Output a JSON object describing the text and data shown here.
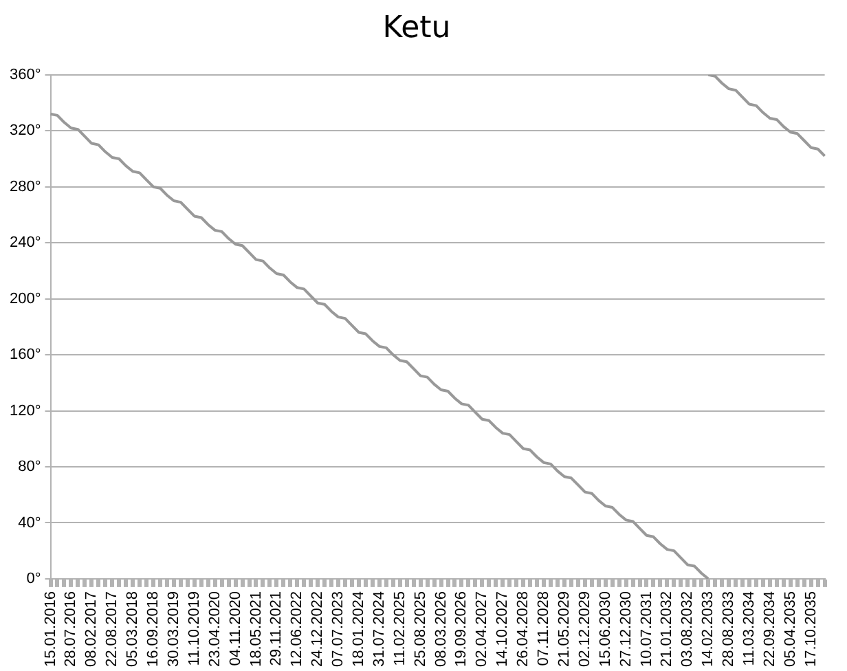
{
  "chart_data": {
    "type": "line",
    "title": "Ketu",
    "categories": [
      "15.01.2016",
      null,
      null,
      "28.07.2016",
      null,
      null,
      "08.02.2017",
      null,
      null,
      "22.08.2017",
      null,
      null,
      "05.03.2018",
      null,
      null,
      "16.09.2018",
      null,
      null,
      "30.03.2019",
      null,
      null,
      "11.10.2019",
      null,
      null,
      "23.04.2020",
      null,
      null,
      "04.11.2020",
      null,
      null,
      "18.05.2021",
      null,
      null,
      "29.11.2021",
      null,
      null,
      "12.06.2022",
      null,
      null,
      "24.12.2022",
      null,
      null,
      "07.07.2023",
      null,
      null,
      "18.01.2024",
      null,
      null,
      "31.07.2024",
      null,
      null,
      "11.02.2025",
      null,
      null,
      "25.08.2025",
      null,
      null,
      "08.03.2026",
      null,
      null,
      "19.09.2026",
      null,
      null,
      "02.04.2027",
      null,
      null,
      "14.10.2027",
      null,
      null,
      "26.04.2028",
      null,
      null,
      "07.11.2028",
      null,
      null,
      "21.05.2029",
      null,
      null,
      "02.12.2029",
      null,
      null,
      "15.06.2030",
      null,
      null,
      "27.12.2030",
      null,
      null,
      "10.07.2031",
      null,
      null,
      "21.01.2032",
      null,
      null,
      "03.08.2032",
      null,
      null,
      "14.02.2033",
      null,
      null,
      "28.08.2033",
      null,
      null,
      "11.03.2034",
      null,
      null,
      "22.09.2034",
      null,
      null,
      "05.04.2035",
      null,
      null,
      "17.10.2035",
      null,
      null
    ],
    "series": [
      {
        "color": "#999999",
        "values": [
          332,
          331,
          326,
          322,
          321,
          316,
          311,
          310,
          305,
          301,
          300,
          295,
          291,
          290,
          285,
          280,
          279,
          274,
          270,
          269,
          264,
          259,
          258,
          253,
          249,
          248,
          243,
          239,
          238,
          233,
          228,
          227,
          222,
          218,
          217,
          212,
          208,
          207,
          202,
          197,
          196,
          191,
          187,
          186,
          181,
          176,
          175,
          170,
          166,
          165,
          160,
          156,
          155,
          150,
          145,
          144,
          139,
          135,
          134,
          129,
          125,
          124,
          119,
          114,
          113,
          108,
          104,
          103,
          98,
          93,
          92,
          87,
          83,
          82,
          77,
          73,
          72,
          67,
          62,
          61,
          56,
          52,
          51,
          46,
          42,
          41,
          36,
          31,
          30,
          25,
          21,
          20,
          15,
          10,
          9,
          4,
          0,
          null,
          null,
          null,
          null,
          null,
          null,
          null,
          null,
          null,
          null,
          null,
          null,
          null,
          null,
          null,
          null,
          null
        ]
      },
      {
        "color": "#999999",
        "values": [
          null,
          null,
          null,
          null,
          null,
          null,
          null,
          null,
          null,
          null,
          null,
          null,
          null,
          null,
          null,
          null,
          null,
          null,
          null,
          null,
          null,
          null,
          null,
          null,
          null,
          null,
          null,
          null,
          null,
          null,
          null,
          null,
          null,
          null,
          null,
          null,
          null,
          null,
          null,
          null,
          null,
          null,
          null,
          null,
          null,
          null,
          null,
          null,
          null,
          null,
          null,
          null,
          null,
          null,
          null,
          null,
          null,
          null,
          null,
          null,
          null,
          null,
          null,
          null,
          null,
          null,
          null,
          null,
          null,
          null,
          null,
          null,
          null,
          null,
          null,
          null,
          null,
          null,
          null,
          null,
          null,
          null,
          null,
          null,
          null,
          null,
          null,
          null,
          null,
          null,
          null,
          null,
          null,
          null,
          null,
          null,
          360,
          359,
          354,
          350,
          349,
          344,
          339,
          338,
          333,
          329,
          328,
          323,
          319,
          318,
          313,
          308,
          307,
          302
        ]
      }
    ],
    "ylim": [
      0,
      360
    ],
    "yticks": [
      {
        "value": 0,
        "label": "0°"
      },
      {
        "value": 40,
        "label": "40°"
      },
      {
        "value": 80,
        "label": "80°"
      },
      {
        "value": 120,
        "label": "120°"
      },
      {
        "value": 160,
        "label": "160°"
      },
      {
        "value": 200,
        "label": "200°"
      },
      {
        "value": 240,
        "label": "240°"
      },
      {
        "value": 280,
        "label": "280°"
      },
      {
        "value": 320,
        "label": "320°"
      },
      {
        "value": 360,
        "label": "360°"
      }
    ],
    "grid": "y",
    "legend": false,
    "marker": "none"
  }
}
